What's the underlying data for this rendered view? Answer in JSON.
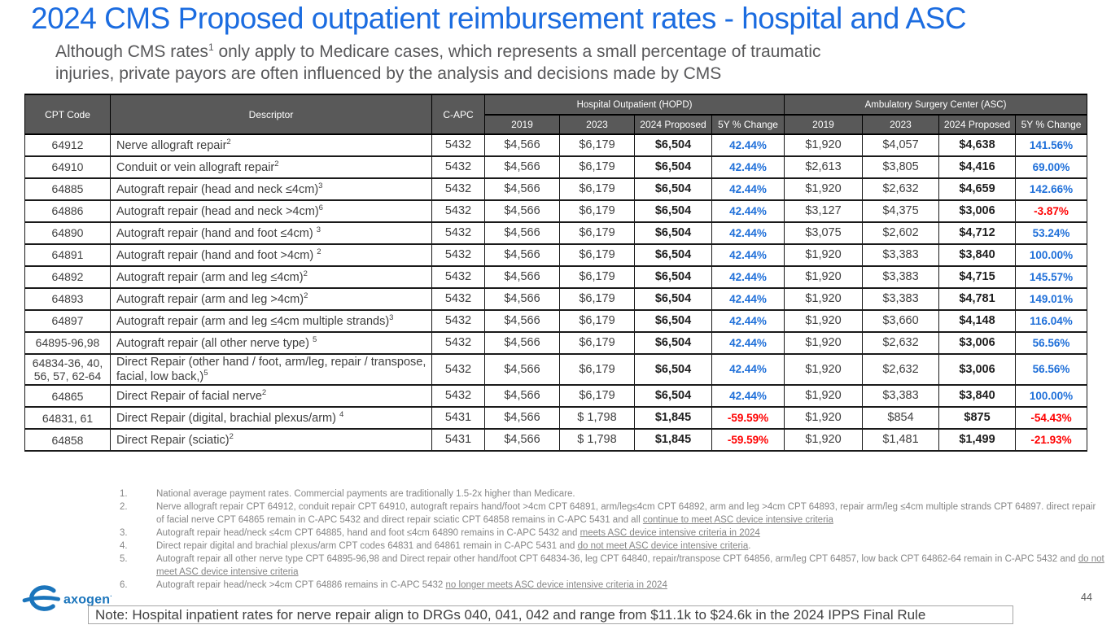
{
  "colors": {
    "title_blue": "#1b6ce0",
    "header_bg": "#595959",
    "positive_pct": "#1e6fd9",
    "negative_pct": "#ff0000",
    "logo_blue": "#1b75bc"
  },
  "header": {
    "title": "2024 CMS Proposed outpatient reimbursement rates - hospital and ASC",
    "subtitle_pre": "Although CMS rates",
    "subtitle_sup": "1",
    "subtitle_post": " only apply to Medicare cases, which represents a small percentage of traumatic",
    "subtitle_line2": "injuries, private payors are often influenced by the analysis and decisions made by CMS"
  },
  "table": {
    "col_cpt": "CPT Code",
    "col_descriptor": "Descriptor",
    "col_capc": "C-APC",
    "group_hopd": "Hospital Outpatient (HOPD)",
    "group_asc": "Ambulatory Surgery Center (ASC)",
    "sub_headers": [
      "2019",
      "2023",
      "2024 Proposed",
      "5Y % Change"
    ],
    "rows": [
      {
        "cpt": "64912",
        "descriptor": "Nerve allograft repair",
        "sup": "2",
        "capc": "5432",
        "hopd": [
          "$4,566",
          "$6,179",
          "$6,504",
          "42.44%"
        ],
        "asc": [
          "$1,920",
          "$4,057",
          "$4,638",
          "141.56%"
        ]
      },
      {
        "cpt": "64910",
        "descriptor": "Conduit or vein allograft repair",
        "sup": "2",
        "capc": "5432",
        "hopd": [
          "$4,566",
          "$6,179",
          "$6,504",
          "42.44%"
        ],
        "asc": [
          "$2,613",
          "$3,805",
          "$4,416",
          "69.00%"
        ]
      },
      {
        "cpt": "64885",
        "descriptor": "Autograft repair (head and neck ≤4cm)",
        "sup": "3",
        "capc": "5432",
        "hopd": [
          "$4,566",
          "$6,179",
          "$6,504",
          "42.44%"
        ],
        "asc": [
          "$1,920",
          "$2,632",
          "$4,659",
          "142.66%"
        ]
      },
      {
        "cpt": "64886",
        "descriptor": "Autograft repair (head and neck >4cm)",
        "sup": "6",
        "capc": "5432",
        "hopd": [
          "$4,566",
          "$6,179",
          "$6,504",
          "42.44%"
        ],
        "asc": [
          "$3,127",
          "$4,375",
          "$3,006",
          "-3.87%"
        ]
      },
      {
        "cpt": "64890",
        "descriptor": "Autograft repair (hand and foot ≤4cm) ",
        "sup": "3",
        "capc": "5432",
        "hopd": [
          "$4,566",
          "$6,179",
          "$6,504",
          "42.44%"
        ],
        "asc": [
          "$3,075",
          "$2,602",
          "$4,712",
          "53.24%"
        ]
      },
      {
        "cpt": "64891",
        "descriptor": "Autograft repair (hand and foot >4cm) ",
        "sup": "2",
        "capc": "5432",
        "hopd": [
          "$4,566",
          "$6,179",
          "$6,504",
          "42.44%"
        ],
        "asc": [
          "$1,920",
          "$3,383",
          "$3,840",
          "100.00%"
        ]
      },
      {
        "cpt": "64892",
        "descriptor": "Autograft repair (arm and leg ≤4cm)",
        "sup": "2",
        "capc": "5432",
        "hopd": [
          "$4,566",
          "$6,179",
          "$6,504",
          "42.44%"
        ],
        "asc": [
          "$1,920",
          "$3,383",
          "$4,715",
          "145.57%"
        ]
      },
      {
        "cpt": "64893",
        "descriptor": "Autograft repair (arm and leg >4cm)",
        "sup": "2",
        "capc": "5432",
        "hopd": [
          "$4,566",
          "$6,179",
          "$6,504",
          "42.44%"
        ],
        "asc": [
          "$1,920",
          "$3,383",
          "$4,781",
          "149.01%"
        ]
      },
      {
        "cpt": "64897",
        "descriptor": "Autograft repair (arm and leg ≤4cm multiple strands)",
        "sup": "3",
        "capc": "5432",
        "hopd": [
          "$4,566",
          "$6,179",
          "$6,504",
          "42.44%"
        ],
        "asc": [
          "$1,920",
          "$3,660",
          "$4,148",
          "116.04%"
        ]
      },
      {
        "cpt": "64895-96,98",
        "descriptor": "Autograft repair (all other nerve type) ",
        "sup": "5",
        "capc": "5432",
        "hopd": [
          "$4,566",
          "$6,179",
          "$6,504",
          "42.44%"
        ],
        "asc": [
          "$1,920",
          "$2,632",
          "$3,006",
          "56.56%"
        ]
      },
      {
        "cpt": "64834-36, 40, 56, 57, 62-64",
        "descriptor": "Direct Repair (other hand / foot,  arm/leg, repair / transpose, facial, low back,)",
        "sup": "5",
        "capc": "5432",
        "hopd": [
          "$4,566",
          "$6,179",
          "$6,504",
          "42.44%"
        ],
        "asc": [
          "$1,920",
          "$2,632",
          "$3,006",
          "56.56%"
        ]
      },
      {
        "cpt": "64865",
        "descriptor": "Direct Repair of facial nerve",
        "sup": "2",
        "capc": "5432",
        "hopd": [
          "$4,566",
          "$6,179",
          "$6,504",
          "42.44%"
        ],
        "asc": [
          "$1,920",
          "$3,383",
          "$3,840",
          "100.00%"
        ]
      },
      {
        "cpt": "64831, 61",
        "descriptor": "Direct Repair (digital, brachial plexus/arm) ",
        "sup": "4",
        "capc": "5431",
        "hopd": [
          "$4,566",
          "$ 1,798",
          "$1,845",
          "-59.59%"
        ],
        "asc": [
          "$1,920",
          "$854",
          "$875",
          "-54.43%"
        ]
      },
      {
        "cpt": "64858",
        "descriptor": "Direct Repair (sciatic)",
        "sup": "2",
        "capc": "5431",
        "hopd": [
          "$4,566",
          "$ 1,798",
          "$1,845",
          "-59.59%"
        ],
        "asc": [
          "$1,920",
          "$1,481",
          "$1,499",
          "-21.93%"
        ]
      }
    ]
  },
  "footnotes": [
    {
      "num": "1.",
      "pre": "National average payment rates. Commercial payments are traditionally 1.5-2x higher than Medicare.",
      "underline": "",
      "post": ""
    },
    {
      "num": "2.",
      "pre": "Nerve allograft repair CPT 64912, conduit repair CPT 64910, autograft repairs hand/foot >4cm CPT 64891, arm/leg≤4cm CPT 64892, arm and leg >4cm CPT 64893, repair arm/leg ≤4cm multiple strands CPT 64897. direct repair of facial nerve CPT 64865 remain in C-APC 5432 and direct repair sciatic CPT 64858 remains in C-APC 5431 and all ",
      "underline": "continue to meet ASC device intensive criteria",
      "post": ""
    },
    {
      "num": "3.",
      "pre": "Autograft repair head/neck ≤4cm CPT 64885, hand and foot ≤4cm 64890 remains in C-APC 5432 and ",
      "underline": "meets ASC device intensive criteria in 2024",
      "post": ""
    },
    {
      "num": "4.",
      "pre": "Direct repair digital and brachial plexus/arm CPT codes 64831 and 64861 remain in C-APC 5431 and ",
      "underline": "do not meet ASC device intensive criteria",
      "post": "."
    },
    {
      "num": "5.",
      "pre": "Autograft repair all other nerve type CPT 64895-96,98 and Direct repair other hand/foot CPT 64834-36, leg CPT 64840, repair/transpose CPT 64856, arm/leg CPT 64857, low back CPT 64862-64 remain in C-APC 5432 and ",
      "underline": "do not meet ASC device intensive criteria",
      "post": ""
    },
    {
      "num": "6.",
      "pre": "Autograft repair head/neck >4cm CPT 64886 remains in C-APC 5432 ",
      "underline": "no longer meets ASC device intensive criteria in 2024",
      "post": ""
    }
  ],
  "footer": {
    "logo_text": "axogen",
    "logo_mark": "·",
    "page_number": "44",
    "note": "Note: Hospital inpatient rates for nerve repair align to DRGs 040, 041, 042 and range from $11.1k to $24.6k in the 2024 IPPS Final Rule"
  }
}
